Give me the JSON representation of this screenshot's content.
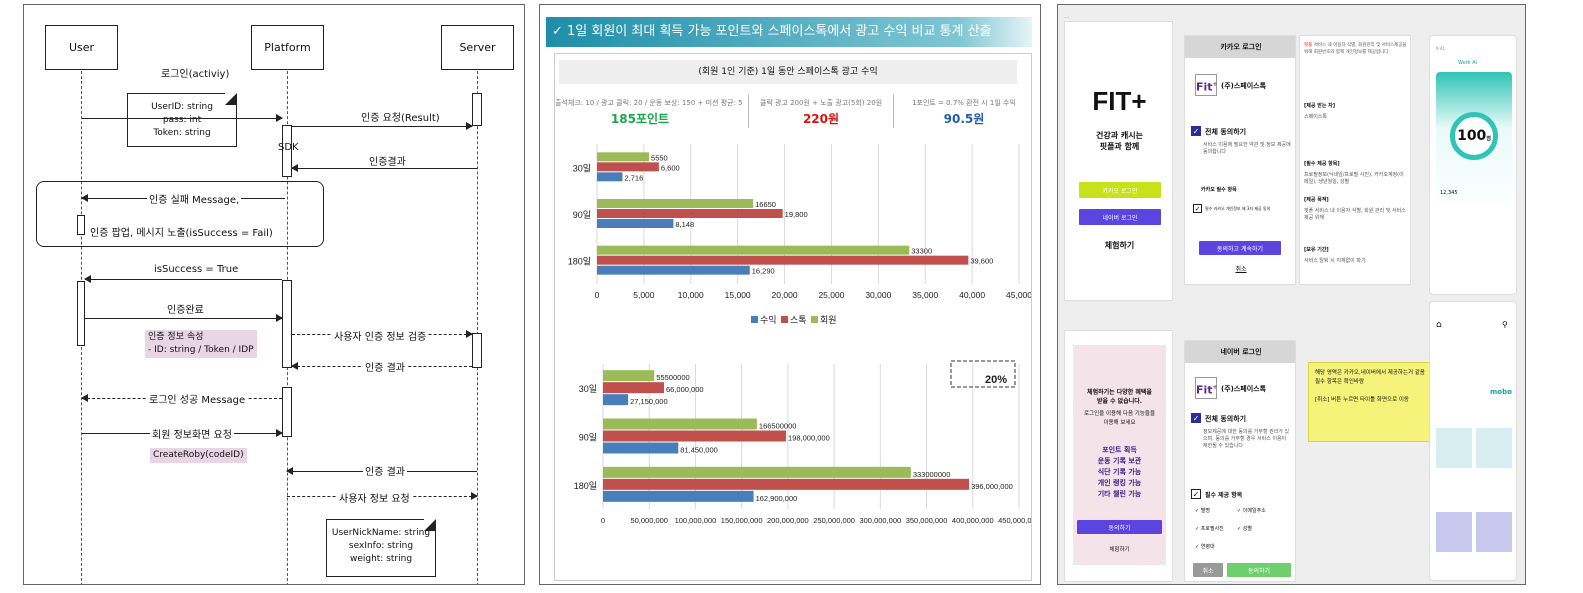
{
  "seq": {
    "actors": {
      "user": "User",
      "platform": "Platform",
      "server": "Server"
    },
    "msgs": {
      "login": "로그인(activiy)",
      "auth_req": "인증 요청(Result)",
      "sdk": "SDK",
      "auth_result1": "인증결과",
      "fail_msg": "인증 실패 Message,",
      "fail_popup": "인증 팝업, 메시지 노출(isSuccess = Fail)",
      "success": "isSuccess = True",
      "complete": "인증완료",
      "verify": "사용자 인증 정보 검증",
      "auth_result2": "인증 결과",
      "login_success": "로그인 성공 Message",
      "member_info": "회원 정보화면 요청",
      "auth_result3": "인증 결과",
      "user_info_req": "사용자 정보 요청"
    },
    "note1": [
      "UserID: string",
      "pass: int",
      "Token: string"
    ],
    "pink1": [
      "인증 정보 속성",
      "- ID: string / Token / IDP"
    ],
    "pink2": "CreateRoby(codeID)",
    "note2": [
      "UserNickName: string",
      "sexInfo: string",
      "weight: string"
    ]
  },
  "stats": {
    "header": "✓ 1일 회원이 최대 획득 가능 포인트와 스페이스톡에서 광고 수익 비교 통계 산출",
    "subtitle": "(회원 1인 기준) 1일 동안 스페이스톡 광고 수익",
    "col1": {
      "desc": "출석체크: 10 / 광고 클릭: 20 / 운동 보상: 150 + 미션 평균: 5",
      "value": "185포인트",
      "color": "#1aa64a"
    },
    "col2": {
      "desc": "클릭 광고 200원 + 노출 광고(5회) 20원",
      "value": "220원",
      "color": "#e01010"
    },
    "col3": {
      "desc": "1포인트 = 0.7% 환전 시 1일 수익",
      "value": "90.5원",
      "color": "#1f5ea8"
    }
  },
  "chart_data": [
    {
      "type": "bar",
      "categories": [
        "30일",
        "90일",
        "180일"
      ],
      "series": [
        {
          "name": "수익",
          "values": [
            2716,
            8148,
            16290
          ],
          "color": "#4a7ebb"
        },
        {
          "name": "스톡",
          "values": [
            6600,
            19800,
            39600
          ],
          "color": "#c0504d"
        },
        {
          "name": "회원",
          "values": [
            5550,
            16650,
            33300
          ],
          "color": "#9bbb59"
        }
      ],
      "data_labels": {
        "수익": [
          "2,716",
          "8,148",
          "16,290"
        ],
        "스톡": [
          "6,600",
          "19,800",
          "39,600"
        ],
        "회원": [
          "5550",
          "16650",
          "33300"
        ]
      },
      "xlim": [
        0,
        45000
      ],
      "ticks": [
        "0",
        "5,000",
        "10,000",
        "15,000",
        "20,000",
        "25,000",
        "30,000",
        "35,000",
        "40,000",
        "45,000"
      ],
      "legend": "bottom"
    },
    {
      "type": "bar",
      "categories": [
        "30일",
        "90일",
        "180일"
      ],
      "series": [
        {
          "name": "수익",
          "values": [
            27150000,
            81450000,
            162900000
          ],
          "color": "#4a7ebb"
        },
        {
          "name": "스톡",
          "values": [
            66000000,
            198000000,
            396000000
          ],
          "color": "#c0504d"
        },
        {
          "name": "회원",
          "values": [
            55500000,
            166500000,
            333000000
          ],
          "color": "#9bbb59"
        }
      ],
      "data_labels": {
        "수익": [
          "27,150,000",
          "81,450,000",
          "162,900,000"
        ],
        "스톡": [
          "66,000,000",
          "198,000,000",
          "396,000,000"
        ],
        "회원": [
          "55500000",
          "166500000",
          "333000000"
        ]
      },
      "xlim": [
        0,
        450000000
      ],
      "ticks": [
        "0",
        "50,000,000",
        "100,000,000",
        "150,000,000",
        "200,000,000",
        "250,000,000",
        "300,000,000",
        "350,000,000",
        "400,000,000",
        "450,000,000"
      ],
      "annotation": "20%"
    }
  ],
  "ui": {
    "fit_logo": "FIT+",
    "fit_tag": [
      "건강과 캐시는",
      "핏플과 함께"
    ],
    "kakao_login_btn": "카카오 로그인",
    "naver_login_btn": "네이버 로그인",
    "trial": "체험하기",
    "kakao_title": "카카오 로그인",
    "naver_title": "네이버 로그인",
    "company": "(주)스페이스톡",
    "agree_all": "전체 동의하기",
    "kakao_items_title": "카카오 필수 항목",
    "kakao_item1": "필수 카카오 개인정보 제 3자 제공 동의",
    "agree_continue": "동의하고 계속하기",
    "cancel": "취소",
    "naver_items_title": "필수 제공 항목",
    "naver_items": [
      "별명",
      "이메일주소",
      "프로필사진",
      "성별",
      "연령대"
    ],
    "naver_cancel": "취소",
    "naver_agree": "동의하기",
    "pink_text": [
      "체험하기는 다양한 혜택을",
      "받을 수 없습니다.",
      "로그인을 이용해 다음 기능들을",
      "이용해 보세요"
    ],
    "pink_features": [
      "포인트 획득",
      "운동 기록 보관",
      "식단 기록 가능",
      "개인 랭킹 가능",
      "기타 챌린 가능"
    ],
    "pink_btn": "동의하기",
    "pink_trial": "체험하기",
    "sticky": [
      "해당 영역은 카카오,네이버에서 제공하는거 같음",
      "필수 항목은 확인바람",
      "",
      "[취소] 버튼 누르면 타이틀 화면으로 이동"
    ],
    "right_text": {
      "heading1": "[제공 받는 자]",
      "val1": "스페이스톡",
      "heading2": "[필수 제공 항목]",
      "val2": "프로필정보(닉네임/프로필 사진), 카카오계정(이메일), 생년월일, 성별",
      "heading3": "[제공 목적]",
      "val3": "핏플 서비스 내 이용자 식별, 회원 관리 및 서비스 제공 위해",
      "heading4": "[보유 기간]",
      "val4": "서비스 탈퇴 시 지체없이 파기"
    },
    "phone": {
      "score": "100",
      "score_label": "점",
      "steps": "12,345",
      "app_name": "Work Ai",
      "brand": "mobo"
    }
  }
}
